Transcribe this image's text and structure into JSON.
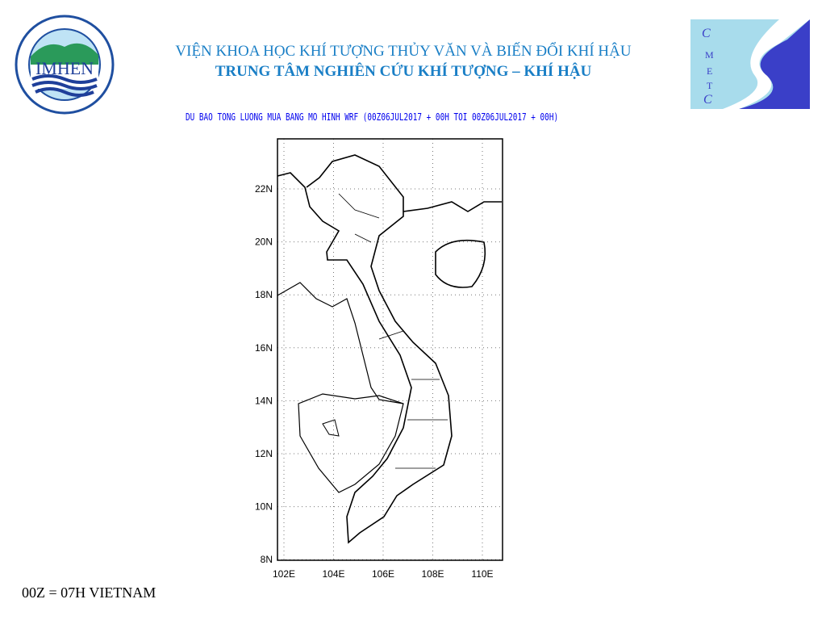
{
  "header": {
    "institute": "VIỆN KHOA HỌC KHÍ TƯỢNG THỦY VĂN VÀ BIẾN ĐỔI KHÍ HẬU",
    "center": "TRUNG TÂM NGHIÊN CỨU KHÍ TƯỢNG – KHÍ HẬU",
    "map_title": "DU BAO TONG LUONG MUA BANG MO HINH WRF (00Z06JUL2017 + 00H TOI 00Z06JUL2017 + 00H)"
  },
  "logos": {
    "left": {
      "text": "IMHEN",
      "ring_text": "VIỆN KHOA HỌC KHÍ TƯỢNG THỦY VĂN VÀ BIẾN ĐỔI KHÍ HẬU"
    },
    "right": {
      "text": "CMETC"
    }
  },
  "map": {
    "lon_ticks": [
      "102E",
      "104E",
      "106E",
      "108E",
      "110E"
    ],
    "lat_ticks": [
      "22N",
      "20N",
      "18N",
      "16N",
      "14N",
      "12N",
      "10N",
      "8N"
    ],
    "colors": {
      "title": "#1a7fc6",
      "subtitle": "#0000ee",
      "outline": "#000000"
    }
  },
  "footer": {
    "note": "00Z = 07H VIETNAM"
  }
}
